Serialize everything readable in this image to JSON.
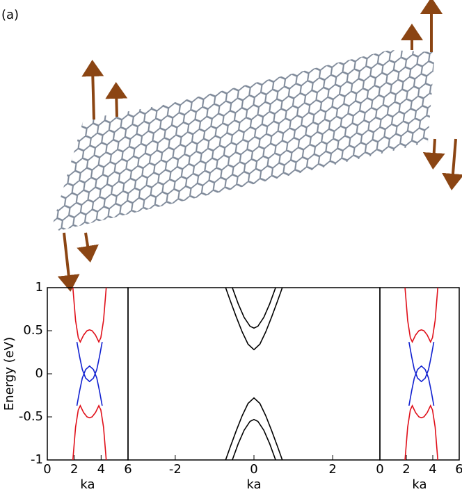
{
  "label": "(a)",
  "chart_data": [
    {
      "type": "line",
      "ylabel": "Energy (eV)",
      "xlabel": "ka",
      "xlim": [
        0,
        6
      ],
      "xticks": [
        0,
        2,
        4,
        6
      ],
      "ylim": [
        -1,
        1
      ],
      "yticks": [
        -1,
        -0.5,
        0,
        0.5,
        1
      ],
      "series": [
        {
          "color": "#e0101a",
          "x": [
            1.9,
            2.1,
            2.3,
            2.45,
            2.7,
            2.95,
            3.14,
            3.33,
            3.58,
            3.83,
            3.98,
            4.18,
            4.38
          ],
          "values": [
            1,
            0.62,
            0.42,
            0.37,
            0.45,
            0.5,
            0.51,
            0.5,
            0.45,
            0.37,
            0.42,
            0.62,
            1
          ]
        },
        {
          "color": "#e0101a",
          "x": [
            1.9,
            2.1,
            2.3,
            2.45,
            2.7,
            2.95,
            3.14,
            3.33,
            3.58,
            3.83,
            3.98,
            4.18,
            4.38
          ],
          "values": [
            -1,
            -0.62,
            -0.42,
            -0.37,
            -0.45,
            -0.5,
            -0.51,
            -0.5,
            -0.45,
            -0.37,
            -0.42,
            -0.62,
            -1
          ]
        },
        {
          "color": "#1020d0",
          "x": [
            2.2,
            2.4,
            2.6,
            2.85,
            3.14,
            3.43,
            3.68,
            3.88,
            4.08
          ],
          "values": [
            0.37,
            0.2,
            0.05,
            -0.05,
            -0.09,
            -0.05,
            0.05,
            0.2,
            0.37
          ]
        },
        {
          "color": "#1020d0",
          "x": [
            2.2,
            2.4,
            2.6,
            2.85,
            3.14,
            3.43,
            3.68,
            3.88,
            4.08
          ],
          "values": [
            -0.37,
            -0.2,
            -0.05,
            0.05,
            0.09,
            0.05,
            -0.05,
            -0.2,
            -0.37
          ]
        }
      ]
    },
    {
      "type": "line",
      "xlabel": "ka",
      "xlim": [
        -3.2,
        3.2
      ],
      "xticks": [
        -2,
        0,
        2
      ],
      "ylim": [
        -1,
        1
      ],
      "series": [
        {
          "color": "#000000",
          "x": [
            -0.72,
            -0.6,
            -0.45,
            -0.3,
            -0.15,
            0,
            0.15,
            0.3,
            0.45,
            0.6,
            0.72
          ],
          "values": [
            1,
            0.846,
            0.661,
            0.487,
            0.344,
            0.28,
            0.344,
            0.487,
            0.661,
            0.846,
            1
          ]
        },
        {
          "color": "#000000",
          "x": [
            -0.55,
            -0.4,
            -0.25,
            -0.1,
            0,
            0.1,
            0.25,
            0.4,
            0.55
          ],
          "values": [
            1,
            0.812,
            0.655,
            0.552,
            0.53,
            0.552,
            0.655,
            0.812,
            1
          ]
        },
        {
          "color": "#000000",
          "x": [
            -0.72,
            -0.6,
            -0.45,
            -0.3,
            -0.15,
            0,
            0.15,
            0.3,
            0.45,
            0.6,
            0.72
          ],
          "values": [
            -1,
            -0.846,
            -0.661,
            -0.487,
            -0.344,
            -0.28,
            -0.344,
            -0.487,
            -0.661,
            -0.846,
            -1
          ]
        },
        {
          "color": "#000000",
          "x": [
            -0.55,
            -0.4,
            -0.25,
            -0.1,
            0,
            0.1,
            0.25,
            0.4,
            0.55
          ],
          "values": [
            -1,
            -0.812,
            -0.655,
            -0.552,
            -0.53,
            -0.552,
            -0.655,
            -0.812,
            -1
          ]
        }
      ]
    },
    {
      "type": "line",
      "xlabel": "ka",
      "xlim": [
        0,
        6
      ],
      "xticks": [
        0,
        2,
        4,
        6
      ],
      "ylim": [
        -1,
        1
      ],
      "series": [
        {
          "color": "#e0101a",
          "x": [
            1.9,
            2.1,
            2.3,
            2.45,
            2.7,
            2.95,
            3.14,
            3.33,
            3.58,
            3.83,
            3.98,
            4.18,
            4.38
          ],
          "values": [
            1,
            0.62,
            0.42,
            0.37,
            0.45,
            0.5,
            0.51,
            0.5,
            0.45,
            0.37,
            0.42,
            0.62,
            1
          ]
        },
        {
          "color": "#e0101a",
          "x": [
            1.9,
            2.1,
            2.3,
            2.45,
            2.7,
            2.95,
            3.14,
            3.33,
            3.58,
            3.83,
            3.98,
            4.18,
            4.38
          ],
          "values": [
            -1,
            -0.62,
            -0.42,
            -0.37,
            -0.45,
            -0.5,
            -0.51,
            -0.5,
            -0.45,
            -0.37,
            -0.42,
            -0.62,
            -1
          ]
        },
        {
          "color": "#1020d0",
          "x": [
            2.2,
            2.4,
            2.6,
            2.85,
            3.14,
            3.43,
            3.68,
            3.88,
            4.08
          ],
          "values": [
            0.37,
            0.2,
            0.05,
            -0.05,
            -0.09,
            -0.05,
            0.05,
            0.2,
            0.37
          ]
        },
        {
          "color": "#1020d0",
          "x": [
            2.2,
            2.4,
            2.6,
            2.85,
            3.14,
            3.43,
            3.68,
            3.88,
            4.08
          ],
          "values": [
            -0.37,
            -0.2,
            -0.05,
            0.05,
            0.09,
            0.05,
            -0.05,
            -0.2,
            -0.37
          ]
        }
      ]
    }
  ]
}
